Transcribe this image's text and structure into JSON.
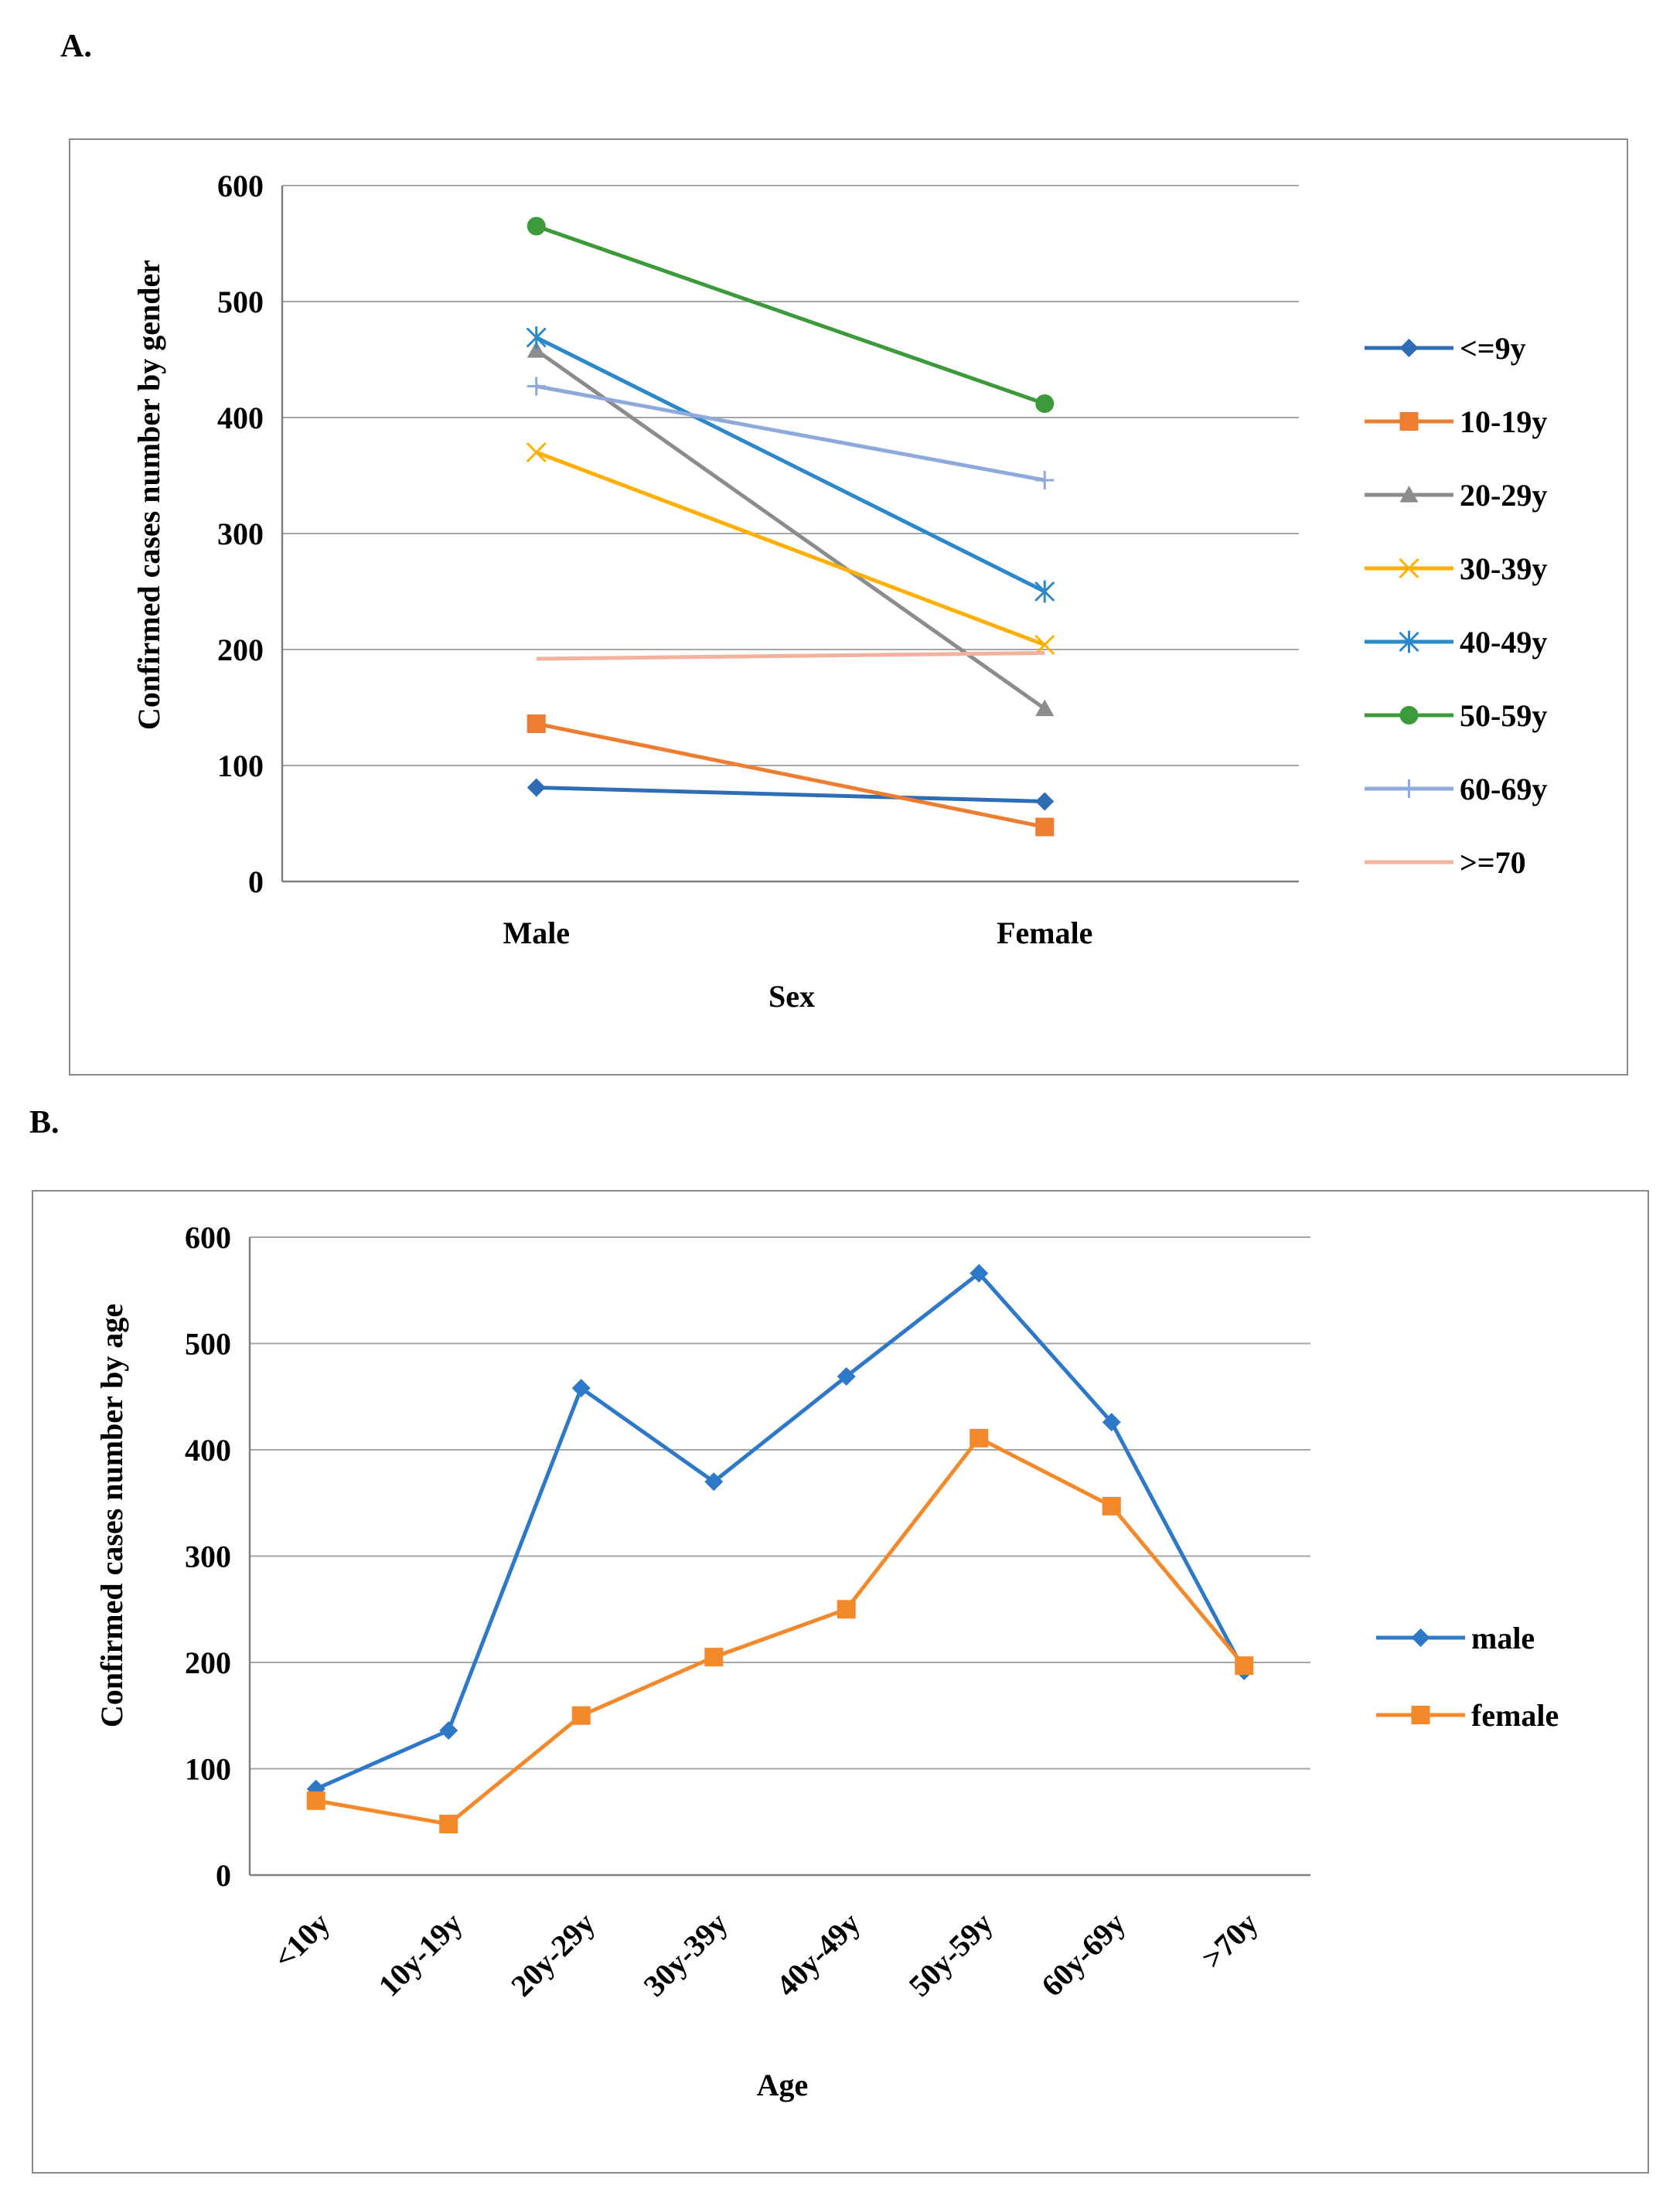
{
  "panels": {
    "a_label": "A.",
    "b_label": "B."
  },
  "chart_data": [
    {
      "type": "line",
      "panel": "A.",
      "title": "",
      "xlabel": "Sex",
      "ylabel": "Confirmed cases number by gender",
      "categories": [
        "Male",
        "Female"
      ],
      "ylim": [
        0,
        600
      ],
      "yticks": [
        0,
        100,
        200,
        300,
        400,
        500,
        600
      ],
      "grid": true,
      "legend": "right",
      "series": [
        {
          "name": "<=9y",
          "values": [
            81,
            69
          ],
          "color": "#2E6DB4",
          "marker": "diamond"
        },
        {
          "name": "10-19y",
          "values": [
            136,
            47
          ],
          "color": "#ED7D31",
          "marker": "square"
        },
        {
          "name": "20-29y",
          "values": [
            458,
            149
          ],
          "color": "#8C8C8C",
          "marker": "triangle"
        },
        {
          "name": "30-39y",
          "values": [
            370,
            204
          ],
          "color": "#FFB000",
          "marker": "x"
        },
        {
          "name": "40-49y",
          "values": [
            469,
            250
          ],
          "color": "#2C88C8",
          "marker": "star"
        },
        {
          "name": "50-59y",
          "values": [
            565,
            412
          ],
          "color": "#3D9A3A",
          "marker": "circle"
        },
        {
          "name": "60-69y",
          "values": [
            427,
            346
          ],
          "color": "#8EA9DB",
          "marker": "plus"
        },
        {
          "name": ">=70",
          "values": [
            192,
            197
          ],
          "color": "#F4B19C",
          "marker": "none"
        }
      ]
    },
    {
      "type": "line",
      "panel": "B.",
      "title": "",
      "xlabel": "Age",
      "ylabel": "Confirmed cases number by age",
      "categories": [
        "<10y",
        "10y-19y",
        "20y-29y",
        "30y-39y",
        "40y-49y",
        "50y-59y",
        "60y-69y",
        ">70y"
      ],
      "ylim": [
        0,
        600
      ],
      "yticks": [
        0,
        100,
        200,
        300,
        400,
        500,
        600
      ],
      "grid": true,
      "legend": "right",
      "series": [
        {
          "name": "male",
          "values": [
            81,
            136,
            458,
            370,
            469,
            566,
            426,
            192
          ],
          "color": "#2E78C8",
          "marker": "diamond"
        },
        {
          "name": "female",
          "values": [
            70,
            48,
            150,
            205,
            250,
            411,
            347,
            197
          ],
          "color": "#F4892C",
          "marker": "square"
        }
      ]
    }
  ]
}
